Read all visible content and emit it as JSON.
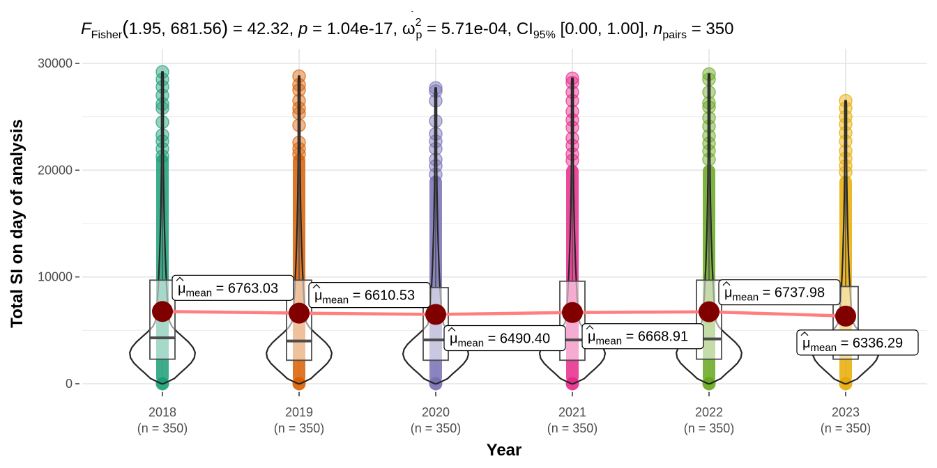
{
  "chart_data": {
    "type": "violin-box",
    "title": {
      "stat_name": "F",
      "stat_sub": "Fisher",
      "args": "1.95, 681.56",
      "stat_value": "= 42.32,",
      "p_label": "p",
      "p_value": "= 1.04e-17,",
      "effect_label": "ω",
      "effect_sup": "2",
      "effect_sub": "p",
      "effect_value": "= 5.71e-04,",
      "ci_label": "CI",
      "ci_sub": "95%",
      "ci_value": "[0.00, 1.00],",
      "n_label": "n",
      "n_sub": "pairs",
      "n_value": "= 350"
    },
    "xlabel": "Year",
    "ylabel": "Total SI on day of analysis",
    "ylim": [
      0,
      30000
    ],
    "yticks": [
      0,
      10000,
      20000,
      30000
    ],
    "grid": true,
    "categories": [
      "2018",
      "2019",
      "2020",
      "2021",
      "2022",
      "2023"
    ],
    "n_labels": [
      "(n = 350)",
      "(n = 350)",
      "(n = 350)",
      "(n = 350)",
      "(n = 350)",
      "(n = 350)"
    ],
    "colors": [
      "#1b9e77",
      "#d95f02",
      "#7570b3",
      "#e7298a",
      "#66a61e",
      "#e6ab02"
    ],
    "mean_color": "#800000",
    "mean_line_color": "#ff7f7f",
    "means": [
      6763.03,
      6610.53,
      6490.4,
      6668.91,
      6737.98,
      6336.29
    ],
    "mean_labels": [
      "6763.03",
      "6610.53",
      "6490.40",
      "6668.91",
      "6737.98",
      "6336.29"
    ],
    "mean_symbol": "μ",
    "mean_sub": "mean",
    "box": [
      {
        "q1": 2300,
        "median": 4300,
        "q3": 9700,
        "whisker_high": 21500
      },
      {
        "q1": 2200,
        "median": 4000,
        "q3": 9700,
        "whisker_high": 21500
      },
      {
        "q1": 2200,
        "median": 4100,
        "q3": 9000,
        "whisker_high": 19500
      },
      {
        "q1": 2200,
        "median": 4100,
        "q3": 9600,
        "whisker_high": 20500
      },
      {
        "q1": 2300,
        "median": 4200,
        "q3": 9700,
        "whisker_high": 20500
      },
      {
        "q1": 2300,
        "median": 4200,
        "q3": 9100,
        "whisker_high": 19500
      }
    ],
    "outliers": [
      [
        29200,
        28500,
        27800,
        27000,
        26200,
        25800,
        24500,
        23300,
        22700,
        22000,
        21300
      ],
      [
        28800,
        28000,
        27500,
        26500,
        25800,
        25300,
        24200,
        22600,
        22000,
        21500
      ],
      [
        27700,
        27400,
        26500,
        24600,
        23400,
        22700,
        22000,
        21000,
        20400,
        19600
      ],
      [
        28600,
        28200,
        27300,
        26500,
        25500,
        24700,
        24000,
        23000,
        22300,
        21500,
        20900
      ],
      [
        29000,
        28500,
        27300,
        26300,
        25900,
        24900,
        24100,
        23200,
        22500,
        21800,
        21000
      ],
      [
        26500,
        25800,
        25000,
        24300,
        23500,
        22700,
        21800,
        21100,
        20400,
        19800
      ]
    ]
  }
}
